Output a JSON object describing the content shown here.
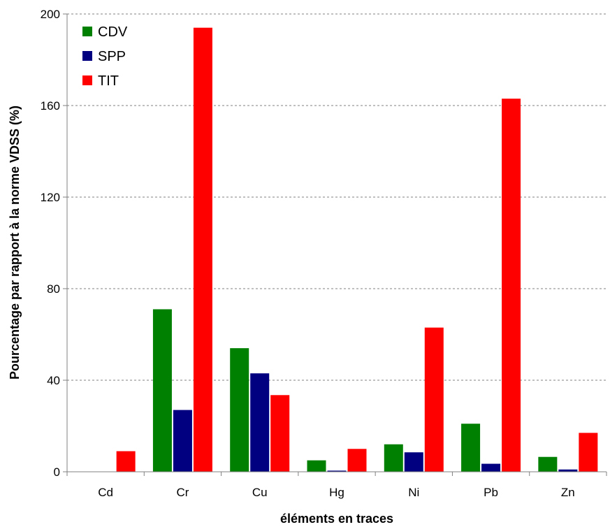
{
  "chart_data": {
    "type": "bar",
    "title": "",
    "xlabel": "éléments en traces",
    "ylabel": "Pourcentage par rapport à la norme VDSS (%)",
    "ylim": [
      0,
      200
    ],
    "yticks": [
      0,
      40,
      80,
      120,
      160,
      200
    ],
    "grid": "horizontal dashed",
    "legend_position": "top-left",
    "categories": [
      "Cd",
      "Cr",
      "Cu",
      "Hg",
      "Ni",
      "Pb",
      "Zn"
    ],
    "series": [
      {
        "name": "CDV",
        "color": "#008000",
        "values": [
          0,
          71,
          54,
          5,
          12,
          21,
          6.5
        ]
      },
      {
        "name": "SPP",
        "color": "#000080",
        "values": [
          0,
          27,
          43,
          0.5,
          8.5,
          3.5,
          1
        ]
      },
      {
        "name": "TIT",
        "color": "#ff0000",
        "values": [
          9,
          194,
          33.5,
          10,
          63,
          163,
          17
        ]
      }
    ]
  }
}
